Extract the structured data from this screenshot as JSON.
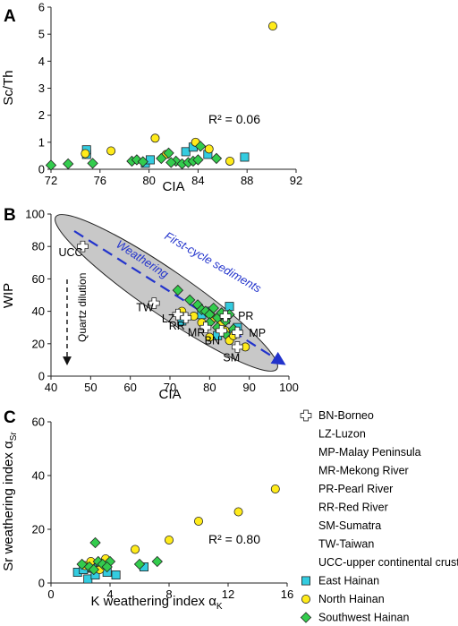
{
  "colors": {
    "east_hainan": "#33CCE0",
    "north_hainan": "#FFEB1A",
    "southwest_hainan": "#33CC4D",
    "trend": "#2233CC",
    "ellipse": "#C8C8C8",
    "stroke": "#222222"
  },
  "chart_data": [
    {
      "type": "scatter",
      "panel_label": "A",
      "xlabel": "CIA",
      "ylabel": "Sc/Th",
      "xlim": [
        72,
        92
      ],
      "ylim": [
        0,
        6
      ],
      "x_ticks": [
        72,
        76,
        80,
        84,
        88,
        92
      ],
      "y_ticks": [
        0,
        1,
        2,
        3,
        4,
        5,
        6
      ],
      "annotation": "R² = 0.06",
      "series": [
        {
          "name": "East Hainan",
          "marker": "square",
          "color": "#33CCE0",
          "points": [
            [
              74.9,
              0.55
            ],
            [
              74.9,
              0.72
            ],
            [
              79.7,
              0.22
            ],
            [
              80.1,
              0.35
            ],
            [
              83.0,
              0.65
            ],
            [
              83.6,
              0.82
            ],
            [
              84.8,
              0.55
            ],
            [
              87.8,
              0.45
            ]
          ]
        },
        {
          "name": "North Hainan",
          "marker": "circle",
          "color": "#FFEB1A",
          "points": [
            [
              74.8,
              0.58
            ],
            [
              76.9,
              0.68
            ],
            [
              80.5,
              1.15
            ],
            [
              81.4,
              0.55
            ],
            [
              83.8,
              1.0
            ],
            [
              84.9,
              0.75
            ],
            [
              86.6,
              0.3
            ],
            [
              90.1,
              5.3
            ]
          ]
        },
        {
          "name": "Southwest Hainan",
          "marker": "diamond",
          "color": "#33CC4D",
          "points": [
            [
              72.0,
              0.15
            ],
            [
              73.4,
              0.2
            ],
            [
              75.4,
              0.22
            ],
            [
              78.6,
              0.3
            ],
            [
              79.0,
              0.35
            ],
            [
              79.5,
              0.28
            ],
            [
              81.0,
              0.4
            ],
            [
              81.6,
              0.6
            ],
            [
              82.2,
              0.3
            ],
            [
              82.7,
              0.2
            ],
            [
              83.2,
              0.25
            ],
            [
              83.6,
              0.3
            ],
            [
              84.0,
              0.35
            ],
            [
              85.5,
              0.4
            ],
            [
              84.2,
              0.85
            ],
            [
              81.8,
              0.25
            ]
          ]
        }
      ]
    },
    {
      "type": "scatter",
      "panel_label": "B",
      "xlabel": "CIA",
      "ylabel": "WIP",
      "xlim": [
        40,
        100
      ],
      "ylim": [
        0,
        100
      ],
      "x_ticks": [
        40,
        50,
        60,
        70,
        80,
        90,
        100
      ],
      "y_ticks": [
        0,
        20,
        40,
        60,
        80,
        100
      ],
      "annotations": [
        "First-cycle sediments",
        "Weathering",
        "Quartz dilution"
      ],
      "reference_points": [
        {
          "label": "UCC",
          "x": 48,
          "y": 80
        },
        {
          "label": "TW",
          "x": 66,
          "y": 45
        },
        {
          "label": "LZ",
          "x": 72,
          "y": 38
        },
        {
          "label": "RR",
          "x": 74,
          "y": 36
        },
        {
          "label": "MR",
          "x": 79,
          "y": 30
        },
        {
          "label": "BN",
          "x": 83,
          "y": 28
        },
        {
          "label": "PR",
          "x": 84,
          "y": 37
        },
        {
          "label": "MP",
          "x": 87,
          "y": 27
        },
        {
          "label": "SM",
          "x": 87,
          "y": 18
        }
      ],
      "series": [
        {
          "name": "East Hainan",
          "marker": "square",
          "color": "#33CCE0",
          "points": [
            [
              73,
              34
            ],
            [
              78,
              38
            ],
            [
              80,
              40
            ],
            [
              84,
              35
            ],
            [
              85,
              43
            ],
            [
              87,
              30
            ],
            [
              83,
              30
            ],
            [
              82,
              25
            ],
            [
              86,
              27
            ]
          ]
        },
        {
          "name": "North Hainan",
          "marker": "circle",
          "color": "#FFEB1A",
          "points": [
            [
              73,
              40
            ],
            [
              76,
              37
            ],
            [
              78,
              33
            ],
            [
              80,
              24
            ],
            [
              83,
              32
            ],
            [
              84,
              28
            ],
            [
              85,
              22
            ],
            [
              86,
              25
            ],
            [
              89,
              18
            ],
            [
              81,
              36
            ]
          ]
        },
        {
          "name": "Southwest Hainan",
          "marker": "diamond",
          "color": "#33CC4D",
          "points": [
            [
              72,
              53
            ],
            [
              75,
              47
            ],
            [
              77,
              44
            ],
            [
              78,
              41
            ],
            [
              79,
              40
            ],
            [
              80,
              38
            ],
            [
              81,
              42
            ],
            [
              82,
              36
            ],
            [
              83,
              39
            ],
            [
              84,
              34
            ],
            [
              85,
              38
            ],
            [
              86,
              29
            ],
            [
              82,
              30
            ],
            [
              80,
              33
            ],
            [
              84,
              26
            ]
          ]
        }
      ]
    },
    {
      "type": "scatter",
      "panel_label": "C",
      "xlabel": "K weathering index α",
      "xlabel_sub": "K",
      "ylabel": "Sr weathering index α",
      "ylabel_sub": "Sr",
      "xlim": [
        0,
        16
      ],
      "ylim": [
        0,
        60
      ],
      "x_ticks": [
        0,
        4,
        8,
        12,
        16
      ],
      "y_ticks": [
        0,
        20,
        40,
        60
      ],
      "annotation": "R² = 0.80",
      "series": [
        {
          "name": "East Hainan",
          "marker": "square",
          "color": "#33CCE0",
          "points": [
            [
              1.8,
              4
            ],
            [
              2.2,
              5
            ],
            [
              2.5,
              1.5
            ],
            [
              3.0,
              3
            ],
            [
              2.8,
              5.5
            ],
            [
              3.4,
              7
            ],
            [
              3.8,
              4
            ],
            [
              4.4,
              3
            ],
            [
              6.3,
              6
            ]
          ]
        },
        {
          "name": "North Hainan",
          "marker": "circle",
          "color": "#FFEB1A",
          "points": [
            [
              2.3,
              6.5
            ],
            [
              2.7,
              8
            ],
            [
              3.3,
              5
            ],
            [
              3.7,
              9
            ],
            [
              5.7,
              12.5
            ],
            [
              8.0,
              16
            ],
            [
              10.0,
              23
            ],
            [
              12.7,
              26.5
            ],
            [
              15.2,
              35
            ]
          ]
        },
        {
          "name": "Southwest Hainan",
          "marker": "diamond",
          "color": "#33CC4D",
          "points": [
            [
              2.1,
              7
            ],
            [
              2.6,
              6
            ],
            [
              3.0,
              15
            ],
            [
              3.2,
              8
            ],
            [
              3.5,
              7
            ],
            [
              4.0,
              8
            ],
            [
              6.0,
              7
            ],
            [
              7.2,
              8
            ],
            [
              2.9,
              5
            ],
            [
              3.8,
              6
            ]
          ]
        }
      ]
    }
  ],
  "legend": {
    "reference_items": [
      "BN-Borneo",
      "LZ-Luzon",
      "MP-Malay Peninsula",
      "MR-Mekong River",
      "PR-Pearl River",
      "RR-Red River",
      "SM-Sumatra",
      "TW-Taiwan",
      "UCC-upper continental crust"
    ],
    "series_items": [
      "East Hainan",
      "North Hainan",
      "Southwest Hainan"
    ]
  }
}
